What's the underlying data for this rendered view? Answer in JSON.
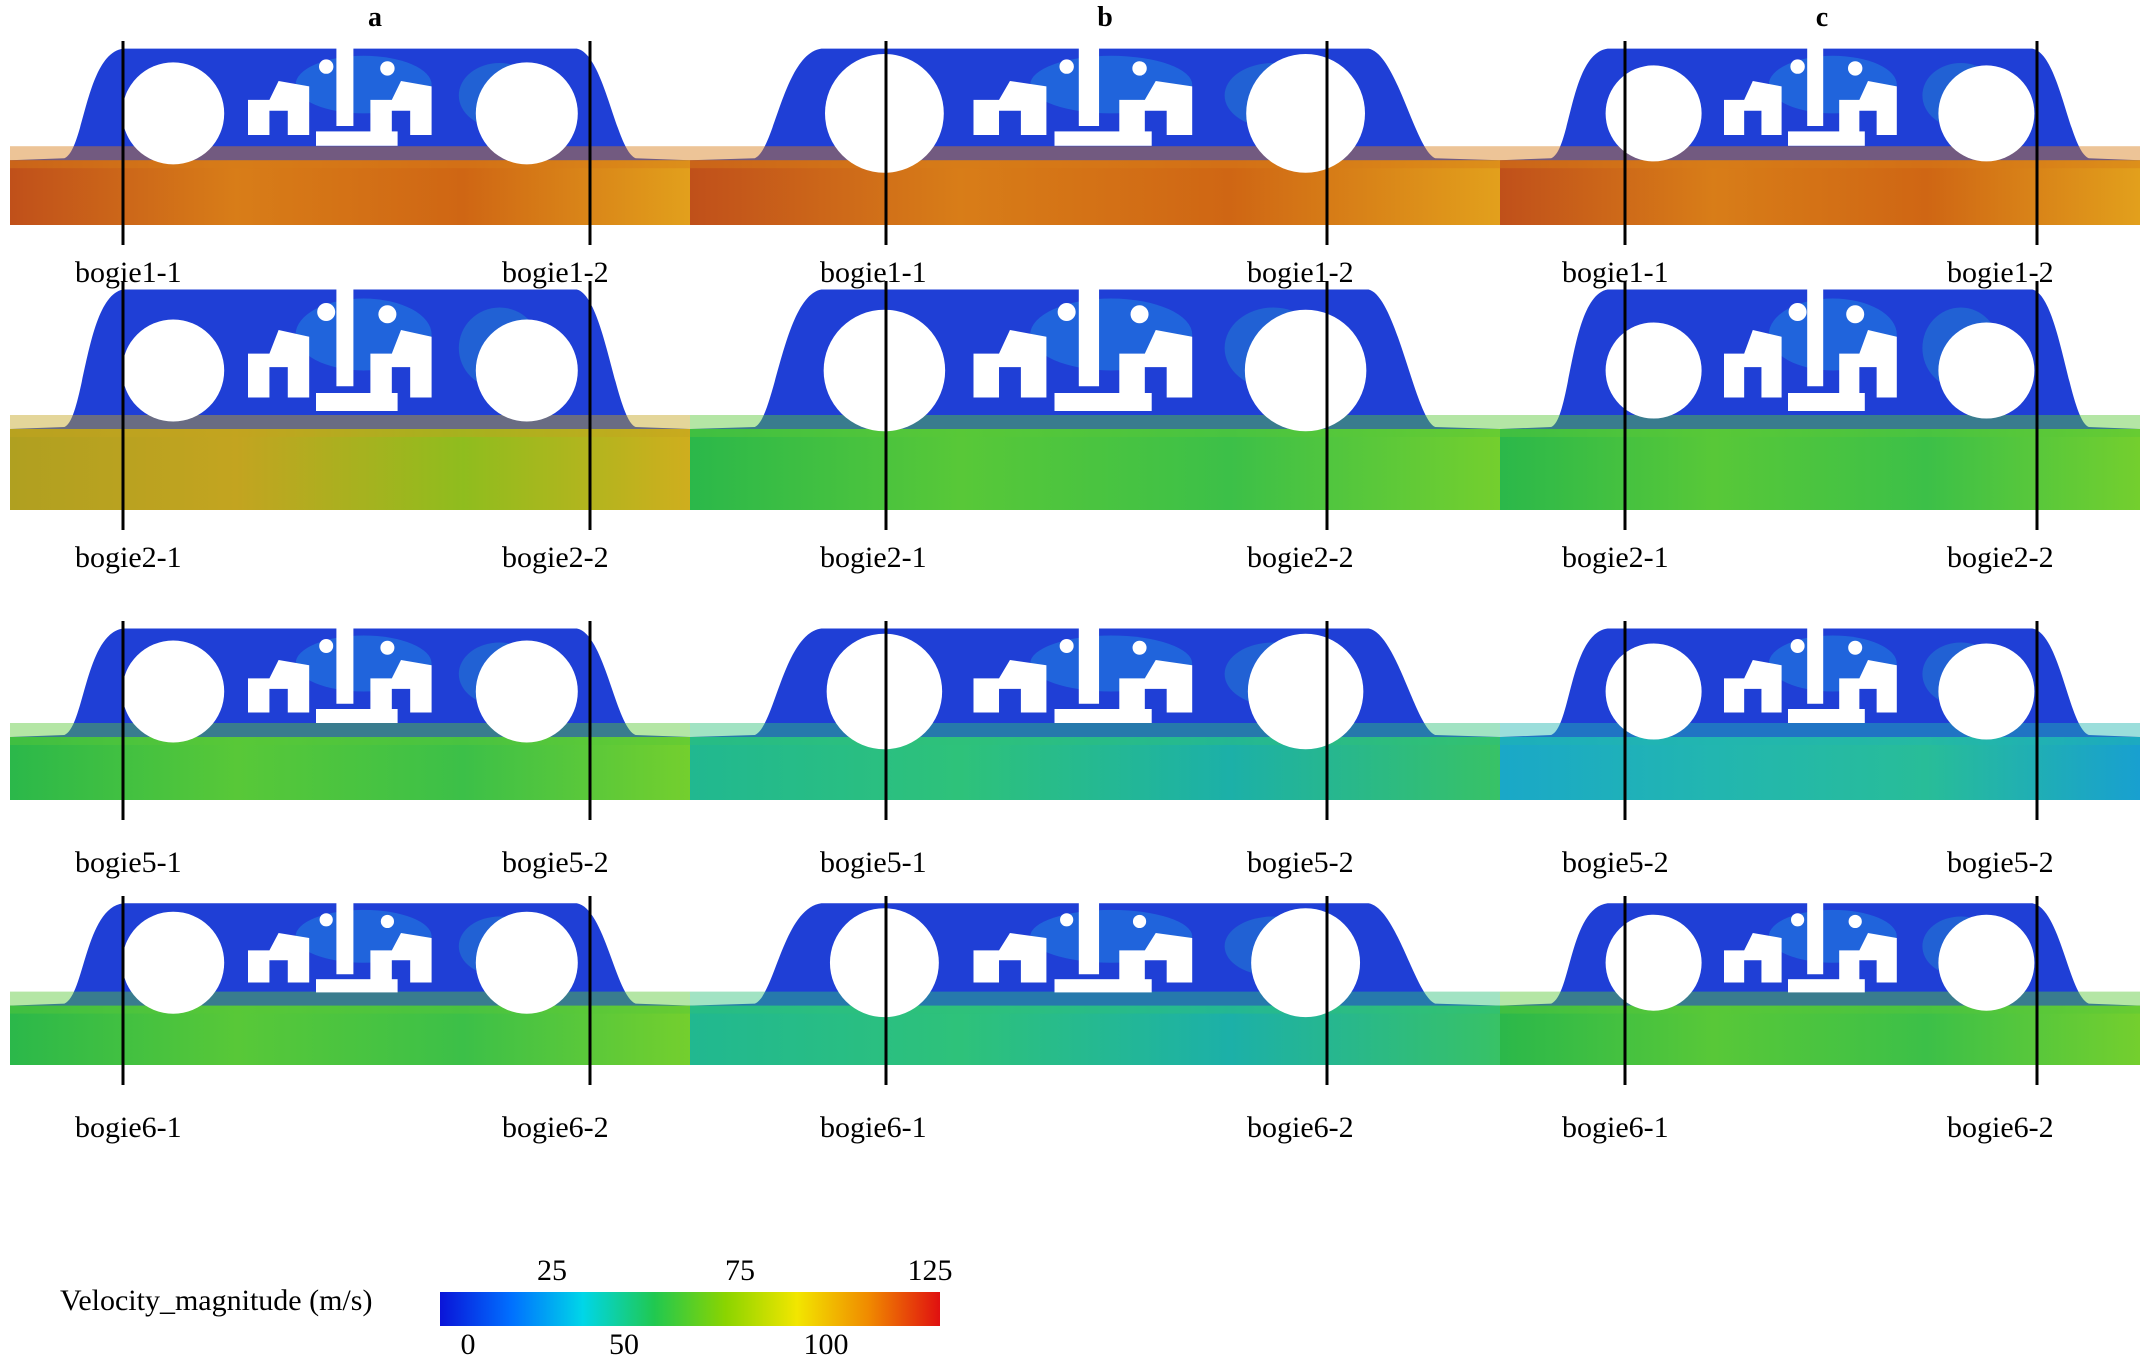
{
  "columns": [
    "a",
    "b",
    "c"
  ],
  "rows": [
    {
      "labels": [
        [
          "bogie1-1",
          "bogie1-2"
        ],
        [
          "bogie1-1",
          "bogie1-2"
        ],
        [
          "bogie1-1",
          "bogie1-2"
        ]
      ]
    },
    {
      "labels": [
        [
          "bogie2-1",
          "bogie2-2"
        ],
        [
          "bogie2-1",
          "bogie2-2"
        ],
        [
          "bogie2-1",
          "bogie2-2"
        ]
      ]
    },
    {
      "labels": [
        [
          "bogie5-1",
          "bogie5-2"
        ],
        [
          "bogie5-1",
          "bogie5-2"
        ],
        [
          "bogie5-2",
          "bogie5-2"
        ]
      ]
    },
    {
      "labels": [
        [
          "bogie6-1",
          "bogie6-2"
        ],
        [
          "bogie6-1",
          "bogie6-2"
        ],
        [
          "bogie6-1",
          "bogie6-2"
        ]
      ]
    }
  ],
  "flow_level": [
    [
      "high",
      "high",
      "high"
    ],
    [
      "high-mid",
      "mid",
      "mid"
    ],
    [
      "mid",
      "low-mid",
      "low"
    ],
    [
      "mid",
      "low-mid",
      "mid"
    ]
  ],
  "legend": {
    "title": "Velocity_magnitude (m/s)",
    "ticks_top": [
      "25",
      "75",
      "125"
    ],
    "ticks_bottom": [
      "0",
      "50",
      "100"
    ],
    "scale": {
      "min": 0,
      "max": 125
    },
    "colors": [
      "#0a14d8",
      "#0070ff",
      "#00d6e8",
      "#20c850",
      "#8bd400",
      "#f2e600",
      "#f08a00",
      "#e01010"
    ]
  },
  "colors": {
    "body_blue": "#1f3fd6",
    "body_blue_dark": "#1530c0",
    "hole_white": "#ffffff",
    "line_black": "#000000"
  }
}
